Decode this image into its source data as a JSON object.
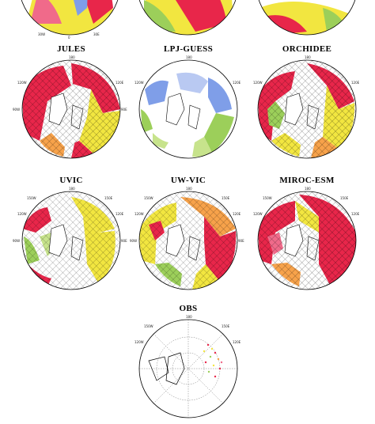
{
  "panels": [
    {
      "title": ""
    },
    {
      "title": ""
    },
    {
      "title": ""
    },
    {
      "title": "JULES"
    },
    {
      "title": "LPJ-GUESS"
    },
    {
      "title": "ORCHIDEE"
    },
    {
      "title": "UVIC"
    },
    {
      "title": "UW-VIC"
    },
    {
      "title": "MIROC-ESM"
    },
    {
      "title": "OBS"
    }
  ],
  "degree_labels": {
    "top": "180",
    "upper_left": "150W",
    "upper_right": "150E",
    "left_upper": "120W",
    "right_upper": "120E",
    "left": "90W",
    "right": "90E",
    "left_lower": "60W",
    "right_lower": "60E",
    "lower_left": "30W",
    "lower_right": "30E",
    "bottom": "0"
  },
  "colors": {
    "red": "#e8264a",
    "pink": "#f06a8a",
    "orange": "#f7a24a",
    "yellow": "#f2e640",
    "green": "#9ccf5a",
    "lightgreen": "#c7e38c",
    "blue": "#7f9ee8",
    "lightblue": "#b9c9f2"
  }
}
